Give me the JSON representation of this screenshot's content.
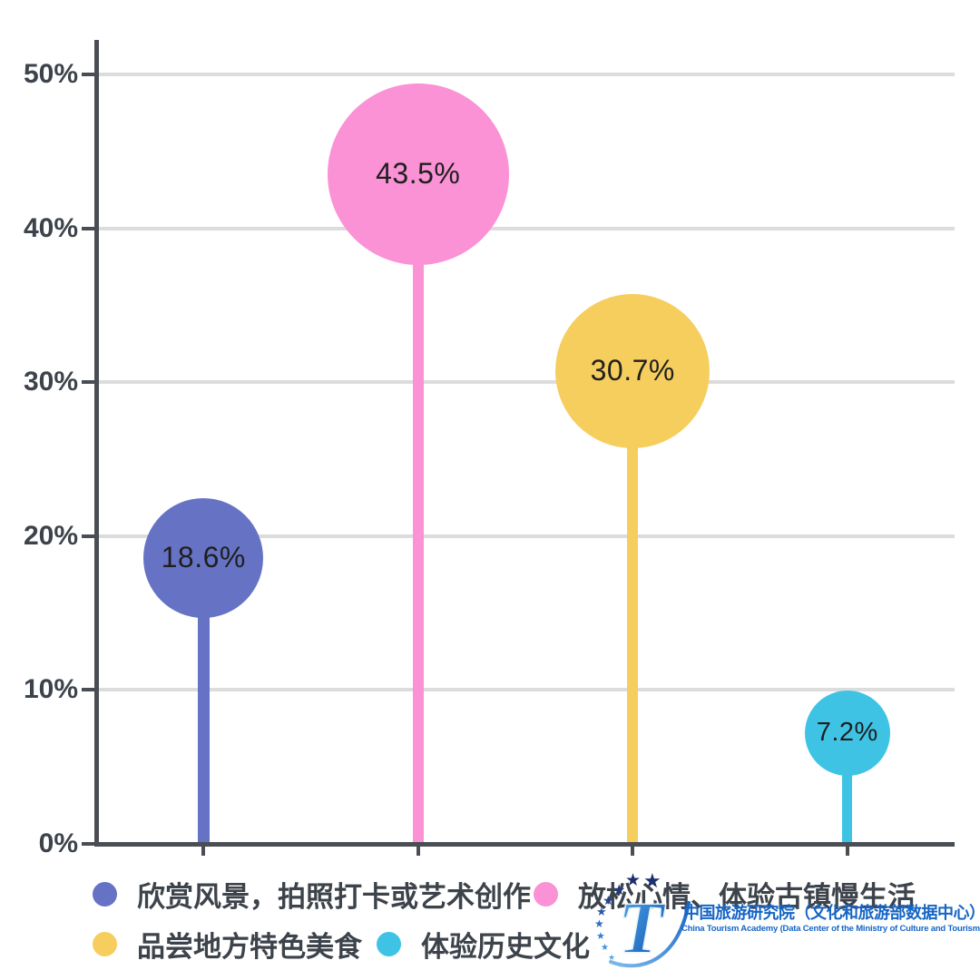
{
  "chart_data": {
    "type": "lollipop",
    "title": "",
    "xlabel": "",
    "ylabel": "",
    "categories": [
      "欣赏风景，拍照打卡或艺术创作",
      "放松心情、体验古镇慢生活",
      "品尝地方特色美食",
      "体验历史文化"
    ],
    "values": [
      18.6,
      43.5,
      30.7,
      7.2
    ],
    "value_labels": [
      "18.6%",
      "43.5%",
      "30.7%",
      "7.2%"
    ],
    "colors": [
      "#6673c5",
      "#fa92d5",
      "#f6ce5e",
      "#3fc3e5"
    ],
    "bubble_radii": [
      66,
      100,
      85,
      47
    ],
    "stick_widths": [
      13,
      12,
      12,
      11
    ],
    "ylim": [
      0,
      50
    ],
    "yticks": [
      0,
      10,
      20,
      30,
      40,
      50
    ],
    "ytick_labels": [
      "0%",
      "10%",
      "20%",
      "30%",
      "40%",
      "50%"
    ],
    "grid": true,
    "legend_position": "bottom"
  },
  "legend": {
    "items": [
      {
        "label": "欣赏风景，拍照打卡或艺术创作",
        "color": "#6673c5"
      },
      {
        "label": "放松心情、体验古镇慢生活",
        "color": "#fa92d5"
      },
      {
        "label": "品尝地方特色美食",
        "color": "#f6ce5e"
      },
      {
        "label": "体验历史文化",
        "color": "#3fc3e5"
      }
    ]
  },
  "watermark": {
    "logo_icon": "china-tourism-academy-logo",
    "org_cn": "中国旅游研究院（文化和旅游部数据中心）",
    "org_en": "China Tourism Academy (Data Center of the Ministry of Culture and Tourism)",
    "brand_color": "#1565c5"
  },
  "style_colors": {
    "axis": "#4a4e54",
    "grid": "#dcdcdc",
    "tick_label": "#3d434b",
    "value_label": "#1f1f1f",
    "legend_text": "#3d434b",
    "background": "#ffffff"
  }
}
